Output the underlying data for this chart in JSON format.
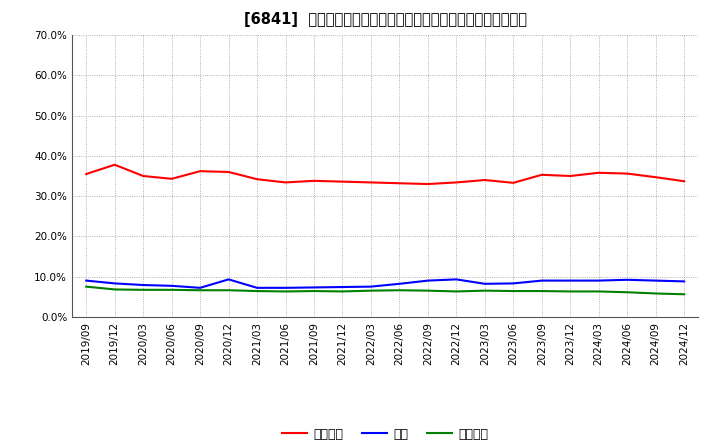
{
  "title": "[6841]  売上債権、在庫、買入債務の総資産に対する比率の推移",
  "legend_labels": [
    "売上債権",
    "在庫",
    "買入債務"
  ],
  "line_colors": [
    "#ff0000",
    "#0000ff",
    "#008000"
  ],
  "ylim": [
    0.0,
    0.7
  ],
  "yticks": [
    0.0,
    0.1,
    0.2,
    0.3,
    0.4,
    0.5,
    0.6,
    0.7
  ],
  "dates": [
    "2019/09",
    "2019/12",
    "2020/03",
    "2020/06",
    "2020/09",
    "2020/12",
    "2021/03",
    "2021/06",
    "2021/09",
    "2021/12",
    "2022/03",
    "2022/06",
    "2022/09",
    "2022/12",
    "2023/03",
    "2023/06",
    "2023/09",
    "2023/12",
    "2024/03",
    "2024/06",
    "2024/09",
    "2024/12"
  ],
  "uriage": [
    0.355,
    0.378,
    0.35,
    0.343,
    0.362,
    0.36,
    0.342,
    0.334,
    0.338,
    0.336,
    0.334,
    0.332,
    0.33,
    0.334,
    0.34,
    0.333,
    0.353,
    0.35,
    0.358,
    0.356,
    0.347,
    0.337
  ],
  "zaiko": [
    0.09,
    0.083,
    0.079,
    0.077,
    0.072,
    0.093,
    0.072,
    0.072,
    0.073,
    0.074,
    0.075,
    0.082,
    0.09,
    0.093,
    0.082,
    0.083,
    0.09,
    0.09,
    0.09,
    0.092,
    0.09,
    0.088
  ],
  "kaiire": [
    0.075,
    0.068,
    0.067,
    0.067,
    0.066,
    0.066,
    0.064,
    0.063,
    0.064,
    0.063,
    0.065,
    0.066,
    0.065,
    0.063,
    0.065,
    0.064,
    0.064,
    0.063,
    0.063,
    0.061,
    0.058,
    0.056
  ],
  "bg_color": "#ffffff",
  "grid_color": "#999999",
  "title_fontsize": 10.5,
  "tick_fontsize": 7.5,
  "legend_fontsize": 9
}
